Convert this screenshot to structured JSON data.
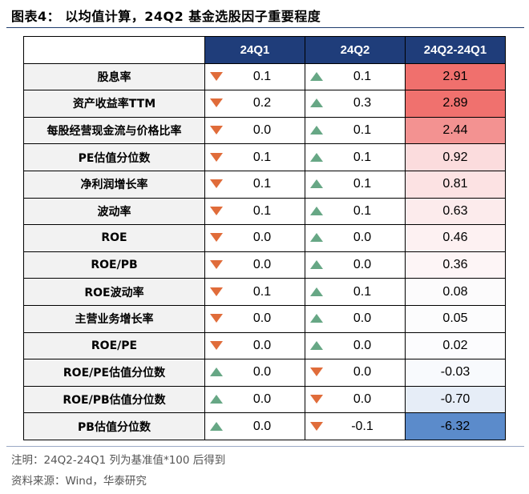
{
  "title": "图表4：  以均值计算，24Q2 基金选股因子重要程度",
  "headers": [
    "24Q1",
    "24Q2",
    "24Q2-24Q1"
  ],
  "rows": [
    {
      "factor": "股息率",
      "q1": "0.1",
      "q1_dir": "down",
      "q2": "0.1",
      "q2_dir": "up",
      "diff": "2.91",
      "diff_bg": "#f0706d"
    },
    {
      "factor": "资产收益率TTM",
      "q1": "0.2",
      "q1_dir": "down",
      "q2": "0.3",
      "q2_dir": "up",
      "diff": "2.89",
      "diff_bg": "#f0716e"
    },
    {
      "factor": "每股经营现金流与价格比率",
      "q1": "0.0",
      "q1_dir": "down",
      "q2": "0.1",
      "q2_dir": "up",
      "diff": "2.44",
      "diff_bg": "#f39291"
    },
    {
      "factor": "PE估值分位数",
      "q1": "0.1",
      "q1_dir": "down",
      "q2": "0.1",
      "q2_dir": "up",
      "diff": "0.92",
      "diff_bg": "#fbdcdd"
    },
    {
      "factor": "净利润增长率",
      "q1": "0.1",
      "q1_dir": "down",
      "q2": "0.1",
      "q2_dir": "up",
      "diff": "0.81",
      "diff_bg": "#fce2e3"
    },
    {
      "factor": "波动率",
      "q1": "0.1",
      "q1_dir": "down",
      "q2": "0.1",
      "q2_dir": "up",
      "diff": "0.63",
      "diff_bg": "#fcebec"
    },
    {
      "factor": "ROE",
      "q1": "0.0",
      "q1_dir": "down",
      "q2": "0.0",
      "q2_dir": "up",
      "diff": "0.46",
      "diff_bg": "#fdf1f2"
    },
    {
      "factor": "ROE/PB",
      "q1": "0.0",
      "q1_dir": "down",
      "q2": "0.0",
      "q2_dir": "up",
      "diff": "0.36",
      "diff_bg": "#fdf5f6"
    },
    {
      "factor": "ROE波动率",
      "q1": "0.1",
      "q1_dir": "down",
      "q2": "0.1",
      "q2_dir": "up",
      "diff": "0.08",
      "diff_bg": "#fcfbfc"
    },
    {
      "factor": "主营业务增长率",
      "q1": "0.0",
      "q1_dir": "down",
      "q2": "0.0",
      "q2_dir": "up",
      "diff": "0.05",
      "diff_bg": "#fcfcfd"
    },
    {
      "factor": "ROE/PE",
      "q1": "0.0",
      "q1_dir": "down",
      "q2": "0.0",
      "q2_dir": "up",
      "diff": "0.02",
      "diff_bg": "#fcfcfe"
    },
    {
      "factor": "ROE/PE估值分位数",
      "q1": "0.0",
      "q1_dir": "up",
      "q2": "0.0",
      "q2_dir": "down",
      "diff": "-0.03",
      "diff_bg": "#f8fafd"
    },
    {
      "factor": "ROE/PB估值分位数",
      "q1": "0.0",
      "q1_dir": "up",
      "q2": "0.0",
      "q2_dir": "down",
      "diff": "-0.70",
      "diff_bg": "#e6edf7"
    },
    {
      "factor": "PB估值分位数",
      "q1": "0.0",
      "q1_dir": "up",
      "q2": "-0.1",
      "q2_dir": "down",
      "diff": "-6.32",
      "diff_bg": "#5b8bcb"
    }
  ],
  "colors": {
    "header_bg": "#1f3d7a",
    "arrow_down": "#e06c3a",
    "arrow_up": "#67a785",
    "label_bg": "#f2f2f2"
  },
  "note": "注明：24Q2-24Q1 列为基准值*100 后得到",
  "source": "资料来源：Wind，华泰研究"
}
